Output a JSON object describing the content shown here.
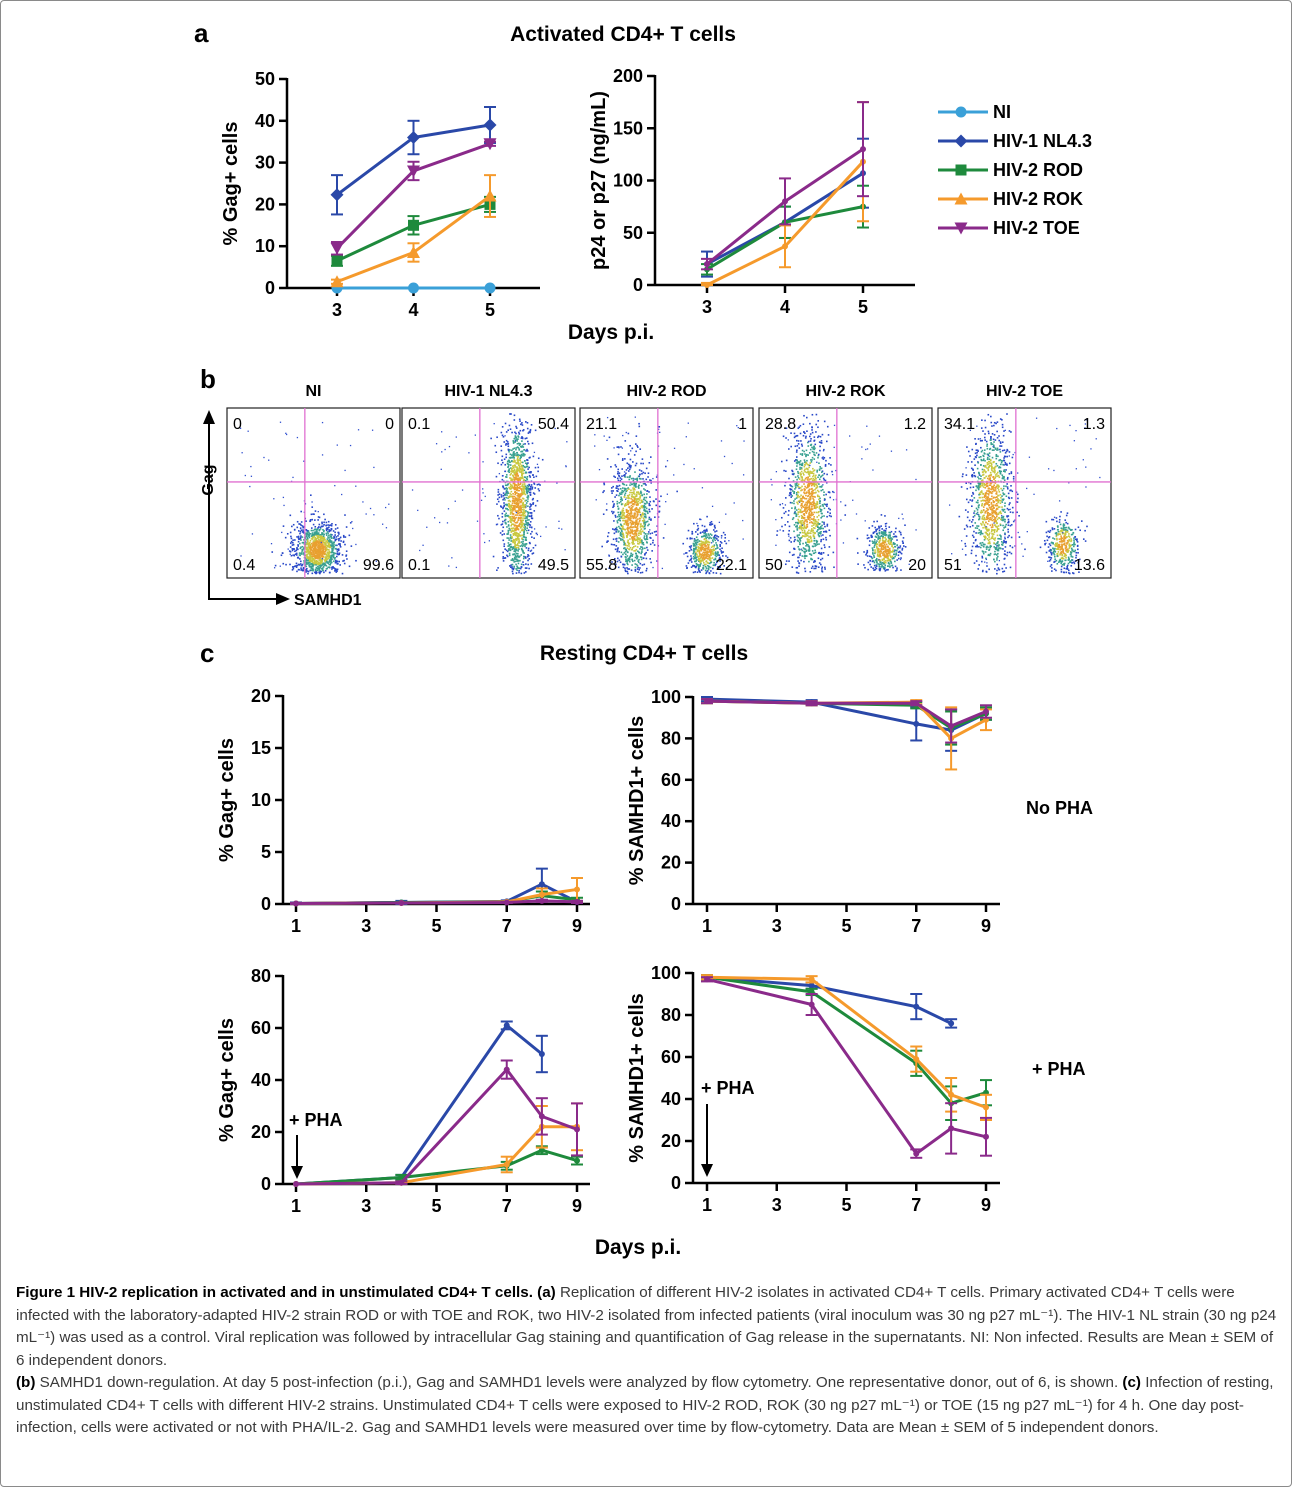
{
  "panel_a": {
    "letter": "a",
    "title": "Activated CD4+ T cells",
    "x_label": "Days p.i.",
    "legend": [
      {
        "name": "NI",
        "color": "#3aa0d8",
        "marker": "circle"
      },
      {
        "name": "HIV-1 NL4.3",
        "color": "#2a48a8",
        "marker": "diamond"
      },
      {
        "name": "HIV-2 ROD",
        "color": "#1e8a3c",
        "marker": "square"
      },
      {
        "name": "HIV-2 ROK",
        "color": "#f59a2c",
        "marker": "triangle"
      },
      {
        "name": "HIV-2 TOE",
        "color": "#8a2a8a",
        "marker": "triangle-down"
      }
    ]
  },
  "panel_b": {
    "letter": "b",
    "y_axis": "Gag",
    "x_axis": "SAMHD1",
    "plots": [
      {
        "title": "NI",
        "q": [
          "0",
          "0",
          "0.4",
          "99.6"
        ]
      },
      {
        "title": "HIV-1 NL4.3",
        "q": [
          "0.1",
          "50.4",
          "0.1",
          "49.5"
        ]
      },
      {
        "title": "HIV-2 ROD",
        "q": [
          "21.1",
          "1",
          "55.8",
          "22.1"
        ]
      },
      {
        "title": "HIV-2 ROK",
        "q": [
          "28.8",
          "1.2",
          "50",
          "20"
        ]
      },
      {
        "title": "HIV-2 TOE",
        "q": [
          "34.1",
          "1.3",
          "51",
          "13.6"
        ]
      }
    ]
  },
  "panel_c": {
    "letter": "c",
    "title": "Resting CD4+ T cells",
    "x_label": "Days p.i.",
    "row_labels": [
      "No PHA",
      "+ PHA"
    ],
    "pha_arrow_label": "+ PHA"
  },
  "chart_data": [
    {
      "type": "line",
      "id": "a_gag",
      "ylabel": "% Gag+ cells",
      "xlabel": "Days p.i.",
      "x": [
        3,
        4,
        5
      ],
      "ylim": [
        0,
        50
      ],
      "yticks": [
        0,
        10,
        20,
        30,
        40,
        50
      ],
      "series": [
        {
          "name": "NI",
          "values": [
            0,
            0,
            0
          ],
          "err": [
            0,
            0,
            0
          ]
        },
        {
          "name": "HIV-1 NL4.3",
          "values": [
            22.3,
            36,
            39
          ],
          "err": [
            4.7,
            4,
            4.3
          ]
        },
        {
          "name": "HIV-2 ROD",
          "values": [
            6.5,
            15,
            20
          ],
          "err": [
            1.2,
            2.2,
            1.8
          ]
        },
        {
          "name": "HIV-2 ROK",
          "values": [
            1.5,
            8.5,
            22
          ],
          "err": [
            0.5,
            2.2,
            5
          ]
        },
        {
          "name": "HIV-2 TOE",
          "values": [
            9.5,
            28,
            34.5
          ],
          "err": [
            1.5,
            2.2,
            0.5
          ]
        }
      ]
    },
    {
      "type": "line",
      "id": "a_p24",
      "ylabel": "p24 or p27 (ng/mL)",
      "xlabel": "Days p.i.",
      "x": [
        3,
        4,
        5
      ],
      "ylim": [
        0,
        200
      ],
      "yticks": [
        0,
        50,
        100,
        150,
        200
      ],
      "series": [
        {
          "name": "HIV-1 NL4.3",
          "values": [
            20,
            60,
            107
          ],
          "err": [
            12,
            15,
            33
          ]
        },
        {
          "name": "HIV-2 ROD",
          "values": [
            15,
            60,
            75
          ],
          "err": [
            5,
            15,
            20
          ]
        },
        {
          "name": "HIV-2 ROK",
          "values": [
            0,
            37,
            118
          ],
          "err": [
            2,
            20,
            57
          ]
        },
        {
          "name": "HIV-2 TOE",
          "values": [
            20,
            80,
            130
          ],
          "err": [
            5,
            22,
            45
          ]
        }
      ]
    },
    {
      "type": "line",
      "id": "c_gag_nopha",
      "ylabel": "% Gag+ cells",
      "x": [
        1,
        4,
        7,
        8,
        9
      ],
      "xticks": [
        1,
        3,
        5,
        7,
        9
      ],
      "ylim": [
        0,
        20
      ],
      "yticks": [
        0,
        5,
        10,
        15,
        20
      ],
      "series": [
        {
          "name": "HIV-1 NL4.3",
          "values": [
            0.05,
            0.15,
            0.25,
            1.9,
            0.2
          ],
          "err": [
            0.1,
            0.15,
            0.1,
            1.5,
            0.1
          ]
        },
        {
          "name": "HIV-2 ROD",
          "values": [
            0.05,
            0.15,
            0.2,
            0.8,
            0.4
          ],
          "err": [
            0.05,
            0.05,
            0.05,
            0.4,
            0.2
          ]
        },
        {
          "name": "HIV-2 ROK",
          "values": [
            0.05,
            0.1,
            0.2,
            0.9,
            1.4
          ],
          "err": [
            0.05,
            0.05,
            0.05,
            0.6,
            1.1
          ]
        },
        {
          "name": "HIV-2 TOE",
          "values": [
            0.05,
            0.1,
            0.15,
            0.3,
            0.2
          ],
          "err": [
            0.05,
            0.05,
            0.05,
            0.1,
            0.1
          ]
        }
      ]
    },
    {
      "type": "line",
      "id": "c_samhd1_nopha",
      "ylabel": "% SAMHD1+ cells",
      "x": [
        1,
        4,
        7,
        8,
        9
      ],
      "xticks": [
        1,
        3,
        5,
        7,
        9
      ],
      "ylim": [
        0,
        100
      ],
      "yticks": [
        0,
        20,
        40,
        60,
        80,
        100
      ],
      "series": [
        {
          "name": "HIV-1 NL4.3",
          "values": [
            99,
            97.5,
            87,
            84,
            92
          ],
          "err": [
            1,
            1,
            8,
            10,
            3
          ]
        },
        {
          "name": "HIV-2 ROD",
          "values": [
            98,
            97,
            96,
            85,
            92
          ],
          "err": [
            1,
            1,
            1.5,
            8,
            3
          ]
        },
        {
          "name": "HIV-2 ROK",
          "values": [
            98,
            97,
            97.5,
            80,
            89
          ],
          "err": [
            1,
            1,
            1,
            15,
            5
          ]
        },
        {
          "name": "HIV-2 TOE",
          "values": [
            98,
            97,
            97,
            86,
            93
          ],
          "err": [
            1,
            1,
            1,
            8,
            3
          ]
        }
      ]
    },
    {
      "type": "line",
      "id": "c_gag_pha",
      "ylabel": "% Gag+ cells",
      "x": [
        1,
        4,
        7,
        8,
        9
      ],
      "xticks": [
        1,
        3,
        5,
        7,
        9
      ],
      "ylim": [
        0,
        80
      ],
      "yticks": [
        0,
        20,
        40,
        60,
        80
      ],
      "series": [
        {
          "name": "HIV-1 NL4.3",
          "values": [
            0,
            2.5,
            61,
            50,
            null
          ],
          "err": [
            0,
            1,
            1.5,
            7,
            0
          ]
        },
        {
          "name": "HIV-2 ROD",
          "values": [
            0,
            2.5,
            7,
            13,
            9
          ],
          "err": [
            0,
            1,
            1.5,
            1.5,
            1.5
          ]
        },
        {
          "name": "HIV-2 ROK",
          "values": [
            0,
            0.5,
            7.5,
            22,
            22
          ],
          "err": [
            0,
            0.5,
            3,
            8,
            9
          ]
        },
        {
          "name": "HIV-2 TOE",
          "values": [
            0,
            0.5,
            44,
            26,
            21
          ],
          "err": [
            0,
            0.5,
            3.5,
            7,
            10
          ]
        }
      ]
    },
    {
      "type": "line",
      "id": "c_samhd1_pha",
      "ylabel": "% SAMHD1+ cells",
      "x": [
        1,
        4,
        7,
        8,
        9
      ],
      "xticks": [
        1,
        3,
        5,
        7,
        9
      ],
      "ylim": [
        0,
        100
      ],
      "yticks": [
        0,
        20,
        40,
        60,
        80,
        100
      ],
      "series": [
        {
          "name": "HIV-1 NL4.3",
          "values": [
            98,
            94,
            84,
            76,
            null
          ],
          "err": [
            1,
            1.5,
            6,
            2,
            0
          ]
        },
        {
          "name": "HIV-2 ROD",
          "values": [
            98,
            91,
            57,
            38,
            43
          ],
          "err": [
            1,
            1.5,
            6,
            8,
            6
          ]
        },
        {
          "name": "HIV-2 ROK",
          "values": [
            98,
            97,
            59,
            42,
            36
          ],
          "err": [
            1,
            1.5,
            6,
            8,
            6
          ]
        },
        {
          "name": "HIV-2 TOE",
          "values": [
            97,
            85,
            14,
            26,
            22
          ],
          "err": [
            1,
            5,
            2,
            12,
            9
          ]
        }
      ]
    }
  ],
  "caption": {
    "title": "Figure 1 HIV-2 replication in activated and in unstimulated CD4+ T cells.",
    "a_label": "(a)",
    "a_text": " Replication of different HIV-2 isolates in activated CD4+ T cells. Primary activated CD4+ T cells were infected with the laboratory-adapted HIV-2 strain ROD or with TOE and ROK, two HIV-2 isolated from infected patients (viral inoculum was 30 ng p27 mL⁻¹). The HIV-1 NL strain (30 ng p24 mL⁻¹) was used as a control. Viral replication was followed by intracellular Gag staining and quantification of Gag release in the supernatants. NI: Non infected. Results are Mean ± SEM of 6 independent donors.",
    "b_label": "(b)",
    "b_text": " SAMHD1 down-regulation. At day 5 post-infection (p.i.), Gag and SAMHD1 levels were analyzed by flow cytometry. One representative donor, out of 6, is shown.",
    "c_label": "(c)",
    "c_text": " Infection of resting, unstimulated CD4+ T cells with different HIV-2 strains. Unstimulated CD4+ T cells were exposed to HIV-2 ROD, ROK (30 ng p27 mL⁻¹) or TOE (15 ng p27 mL⁻¹) for 4 h. One day post-infection, cells were activated or not with PHA/IL-2. Gag and SAMHD1 levels were measured over time by flow-cytometry. Data are Mean ± SEM of 5 independent donors."
  }
}
